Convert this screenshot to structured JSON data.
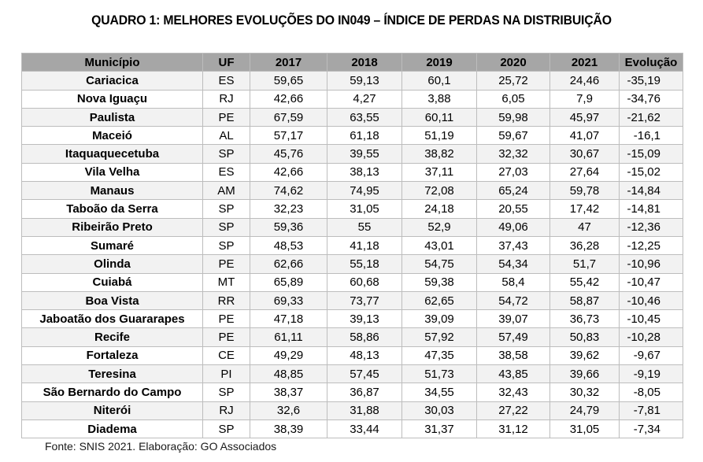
{
  "title": "QUADRO 1: MELHORES EVOLUÇÕES DO IN049 – ÍNDICE DE PERDAS NA DISTRIBUIÇÃO",
  "columns": [
    "Município",
    "UF",
    "2017",
    "2018",
    "2019",
    "2020",
    "2021",
    "Evolução"
  ],
  "rows": [
    [
      "Cariacica",
      "ES",
      "59,65",
      "59,13",
      "60,1",
      "25,72",
      "24,46",
      "-35,19"
    ],
    [
      "Nova Iguaçu",
      "RJ",
      "42,66",
      "4,27",
      "3,88",
      "6,05",
      "7,9",
      "-34,76"
    ],
    [
      "Paulista",
      "PE",
      "67,59",
      "63,55",
      "60,11",
      "59,98",
      "45,97",
      "-21,62"
    ],
    [
      "Maceió",
      "AL",
      "57,17",
      "61,18",
      "51,19",
      "59,67",
      "41,07",
      "-16,1"
    ],
    [
      "Itaquaquecetuba",
      "SP",
      "45,76",
      "39,55",
      "38,82",
      "32,32",
      "30,67",
      "-15,09"
    ],
    [
      "Vila Velha",
      "ES",
      "42,66",
      "38,13",
      "37,11",
      "27,03",
      "27,64",
      "-15,02"
    ],
    [
      "Manaus",
      "AM",
      "74,62",
      "74,95",
      "72,08",
      "65,24",
      "59,78",
      "-14,84"
    ],
    [
      "Taboão da Serra",
      "SP",
      "32,23",
      "31,05",
      "24,18",
      "20,55",
      "17,42",
      "-14,81"
    ],
    [
      "Ribeirão Preto",
      "SP",
      "59,36",
      "55",
      "52,9",
      "49,06",
      "47",
      "-12,36"
    ],
    [
      "Sumaré",
      "SP",
      "48,53",
      "41,18",
      "43,01",
      "37,43",
      "36,28",
      "-12,25"
    ],
    [
      "Olinda",
      "PE",
      "62,66",
      "55,18",
      "54,75",
      "54,34",
      "51,7",
      "-10,96"
    ],
    [
      "Cuiabá",
      "MT",
      "65,89",
      "60,68",
      "59,38",
      "58,4",
      "55,42",
      "-10,47"
    ],
    [
      "Boa Vista",
      "RR",
      "69,33",
      "73,77",
      "62,65",
      "54,72",
      "58,87",
      "-10,46"
    ],
    [
      "Jaboatão dos Guararapes",
      "PE",
      "47,18",
      "39,13",
      "39,09",
      "39,07",
      "36,73",
      "-10,45"
    ],
    [
      "Recife",
      "PE",
      "61,11",
      "58,86",
      "57,92",
      "57,49",
      "50,83",
      "-10,28"
    ],
    [
      "Fortaleza",
      "CE",
      "49,29",
      "48,13",
      "47,35",
      "38,58",
      "39,62",
      "-9,67"
    ],
    [
      "Teresina",
      "PI",
      "48,85",
      "57,45",
      "51,73",
      "43,85",
      "39,66",
      "-9,19"
    ],
    [
      "São Bernardo do Campo",
      "SP",
      "38,37",
      "36,87",
      "34,55",
      "32,43",
      "30,32",
      "-8,05"
    ],
    [
      "Niterói",
      "RJ",
      "32,6",
      "31,88",
      "30,03",
      "27,22",
      "24,79",
      "-7,81"
    ],
    [
      "Diadema",
      "SP",
      "38,39",
      "33,44",
      "31,37",
      "31,12",
      "31,05",
      "-7,34"
    ]
  ],
  "source": "Fonte: SNIS 2021. Elaboração: GO Associados",
  "colors": {
    "header_bg": "#a6a6a6",
    "stripe_bg": "#f2f2f2",
    "border": "#bdbdbd"
  }
}
